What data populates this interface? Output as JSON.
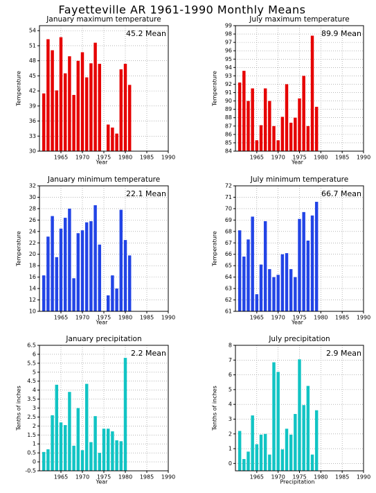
{
  "title": "Fayetteville AR   1961-1990 Monthly Means",
  "chart_data": [
    {
      "type": "bar",
      "title": "January maximum temperature",
      "x_label": "Year",
      "y_label": "Temperature",
      "annotation": "45.2 Mean",
      "color": "#e60000",
      "x": [
        1961,
        1962,
        1963,
        1964,
        1965,
        1966,
        1967,
        1968,
        1969,
        1970,
        1971,
        1972,
        1973,
        1974,
        1976,
        1977,
        1978,
        1979,
        1980,
        1981
      ],
      "values": [
        41.5,
        52.3,
        50.1,
        42.1,
        52.7,
        45.5,
        48.9,
        41.2,
        48,
        49.7,
        44.7,
        47.5,
        51.6,
        47.4,
        35.3,
        34.7,
        33.5,
        46.3,
        47.4,
        43.2
      ],
      "xlim": [
        1960,
        1990
      ],
      "xticks": [
        1965,
        1970,
        1975,
        1980,
        1985,
        1990
      ],
      "ylim": [
        30,
        55
      ],
      "yticks": [
        30,
        33,
        36,
        39,
        42,
        45,
        48,
        51,
        54
      ],
      "grid": true
    },
    {
      "type": "bar",
      "title": "July maximum temperature",
      "x_label": "Year",
      "y_label": "Temperature",
      "annotation": "89.9 Mean",
      "color": "#e60000",
      "x": [
        1961,
        1962,
        1963,
        1964,
        1965,
        1966,
        1967,
        1968,
        1969,
        1970,
        1971,
        1972,
        1973,
        1974,
        1975,
        1976,
        1977,
        1978,
        1979
      ],
      "values": [
        92.2,
        93.6,
        90,
        91.5,
        85.3,
        87.1,
        91.5,
        90,
        87,
        85.3,
        88.1,
        92,
        87.4,
        88,
        90.3,
        93,
        87,
        97.8,
        89.3
      ],
      "xlim": [
        1960,
        1990
      ],
      "xticks": [
        1965,
        1970,
        1975,
        1980,
        1985,
        1990
      ],
      "ylim": [
        84,
        99
      ],
      "yticks": [
        84,
        85,
        86,
        87,
        88,
        89,
        90,
        91,
        92,
        93,
        94,
        95,
        96,
        97,
        98,
        99
      ],
      "grid": true
    },
    {
      "type": "bar",
      "title": "January minimum temperature",
      "x_label": "Year",
      "y_label": "Temperature",
      "annotation": "22.1 Mean",
      "color": "#2244e6",
      "x": [
        1961,
        1962,
        1963,
        1964,
        1965,
        1966,
        1967,
        1968,
        1969,
        1970,
        1971,
        1972,
        1973,
        1974,
        1976,
        1977,
        1978,
        1979,
        1980,
        1981
      ],
      "values": [
        16.3,
        23.1,
        26.7,
        19.5,
        24.5,
        26.4,
        28,
        15.8,
        23.7,
        24.2,
        25.6,
        25.8,
        28.6,
        21.7,
        12.8,
        16.3,
        14,
        27.8,
        22.5,
        19.8
      ],
      "xlim": [
        1960,
        1990
      ],
      "xticks": [
        1965,
        1970,
        1975,
        1980,
        1985,
        1990
      ],
      "ylim": [
        10,
        32
      ],
      "yticks": [
        10,
        12,
        14,
        16,
        18,
        20,
        22,
        24,
        26,
        28,
        30,
        32
      ],
      "grid": true
    },
    {
      "type": "bar",
      "title": "July minimum temperature",
      "x_label": "Year",
      "y_label": "Temperature",
      "annotation": "66.7 Mean",
      "color": "#2244e6",
      "x": [
        1961,
        1962,
        1963,
        1964,
        1965,
        1966,
        1967,
        1968,
        1969,
        1970,
        1971,
        1972,
        1973,
        1974,
        1975,
        1976,
        1977,
        1978,
        1979
      ],
      "values": [
        68.1,
        65.8,
        67.3,
        69.3,
        62.5,
        65.1,
        68.9,
        64.7,
        64,
        64.2,
        66,
        66.1,
        64.7,
        64,
        69.1,
        69.7,
        67.2,
        69.4,
        70.6
      ],
      "xlim": [
        1960,
        1990
      ],
      "xticks": [
        1965,
        1970,
        1975,
        1980,
        1985,
        1990
      ],
      "ylim": [
        61,
        72
      ],
      "yticks": [
        61,
        62,
        63,
        64,
        65,
        66,
        67,
        68,
        69,
        70,
        71,
        72
      ],
      "grid": true
    },
    {
      "type": "bar",
      "title": "January precipitation",
      "x_label": "Year",
      "y_label": "Tenths of inches",
      "annotation": "2.2 Mean",
      "color": "#11c4c4",
      "x": [
        1961,
        1962,
        1963,
        1964,
        1965,
        1966,
        1967,
        1968,
        1969,
        1970,
        1971,
        1972,
        1973,
        1974,
        1975,
        1976,
        1977,
        1978,
        1979,
        1980
      ],
      "values": [
        0.55,
        0.7,
        2.6,
        4.3,
        2.2,
        2.05,
        3.9,
        0.9,
        3,
        0.65,
        4.35,
        1.1,
        2.55,
        0.5,
        1.85,
        1.85,
        1.7,
        1.2,
        1.15,
        5.8
      ],
      "xlim": [
        1960,
        1990
      ],
      "xticks": [
        1965,
        1970,
        1975,
        1980,
        1985,
        1990
      ],
      "ylim": [
        -0.5,
        6.5
      ],
      "yticks": [
        -0.5,
        0,
        0.5,
        1,
        1.5,
        2,
        2.5,
        3,
        3.5,
        4,
        4.5,
        5,
        5.5,
        6,
        6.5
      ],
      "grid": true
    },
    {
      "type": "bar",
      "title": "July precipitation",
      "x_label": "Precipitation",
      "y_label": "Tenths of inches",
      "annotation": "2.9 Mean",
      "color": "#11c4c4",
      "x": [
        1961,
        1962,
        1963,
        1964,
        1965,
        1966,
        1967,
        1968,
        1969,
        1970,
        1971,
        1972,
        1973,
        1974,
        1975,
        1976,
        1977,
        1978,
        1979
      ],
      "values": [
        2.2,
        0.3,
        0.8,
        3.25,
        1.3,
        1.95,
        2,
        0.6,
        6.85,
        6.2,
        0.95,
        2.35,
        1.95,
        3.35,
        7.05,
        3.95,
        5.25,
        0.6,
        3.6
      ],
      "xlim": [
        1960,
        1990
      ],
      "xticks": [
        1965,
        1970,
        1975,
        1980,
        1985,
        1990
      ],
      "ylim": [
        -0.5,
        8
      ],
      "yticks": [
        0,
        1,
        2,
        3,
        4,
        5,
        6,
        7,
        8
      ],
      "grid": true
    }
  ]
}
